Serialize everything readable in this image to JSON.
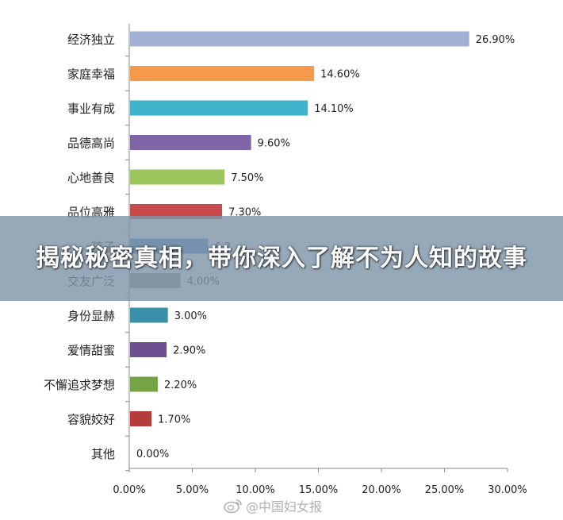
{
  "banner": {
    "title": "揭秘秘密真相，带你深入了解不为人知的故事"
  },
  "watermark": {
    "text": "@中国妇女报",
    "icon": "weibo-icon"
  },
  "chart_data": {
    "type": "bar",
    "orientation": "horizontal",
    "title": "",
    "xlabel": "",
    "ylabel": "",
    "xlim": [
      0,
      30
    ],
    "x_ticks": [
      "0.00%",
      "5.00%",
      "10.00%",
      "15.00%",
      "20.00%",
      "25.00%",
      "30.00%"
    ],
    "x_tick_values": [
      0,
      5,
      10,
      15,
      20,
      25,
      30
    ],
    "grid": false,
    "categories": [
      "经济独立",
      "家庭幸福",
      "事业有成",
      "品德高尚",
      "心地善良",
      "品位高雅",
      "孩子",
      "交友广泛",
      "身份显赫",
      "爱情甜蜜",
      "不懈追求梦想",
      "容貌姣好",
      "其他"
    ],
    "values": [
      26.9,
      14.6,
      14.1,
      9.6,
      7.5,
      7.3,
      6.2,
      4.0,
      3.0,
      2.9,
      2.2,
      1.7,
      0.0
    ],
    "value_labels": [
      "26.90%",
      "14.60%",
      "14.10%",
      "9.60%",
      "7.50%",
      "7.30%",
      "6.2",
      "4.00%",
      "3.00%",
      "2.90%",
      "2.20%",
      "1.70%",
      "0.00%"
    ],
    "colors": [
      "#a3b0d6",
      "#f59a4c",
      "#3fb3cc",
      "#7d65a6",
      "#9dc65e",
      "#c94a4a",
      "#4b7fc0",
      "#8c8480",
      "#3a8fa9",
      "#6e4f8f",
      "#75a447",
      "#b53c3c",
      "#c7c7c7"
    ]
  }
}
